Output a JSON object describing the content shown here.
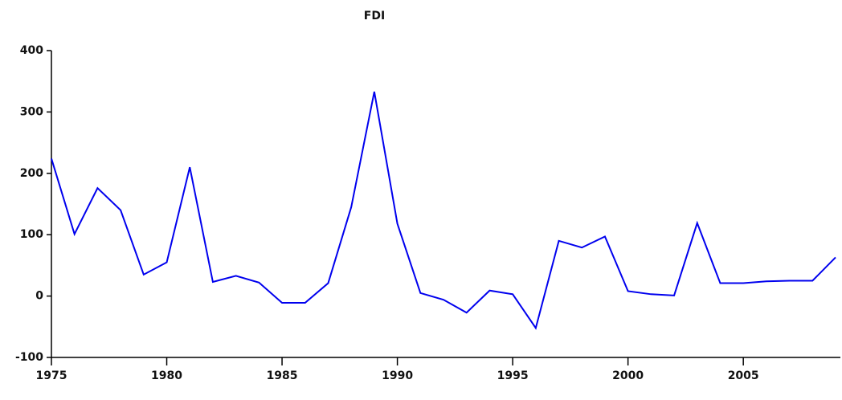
{
  "chart_data": {
    "type": "line",
    "title": "FDI",
    "x": [
      1975,
      1976,
      1977,
      1978,
      1979,
      1980,
      1981,
      1982,
      1983,
      1984,
      1985,
      1986,
      1987,
      1988,
      1989,
      1990,
      1991,
      1992,
      1993,
      1994,
      1995,
      1996,
      1997,
      1998,
      1999,
      2000,
      2001,
      2002,
      2003,
      2004,
      2005,
      2006,
      2007,
      2008,
      2009
    ],
    "series": [
      {
        "name": "FDI",
        "color": "#0000ee",
        "values": [
          224,
          101,
          176,
          140,
          35,
          55,
          210,
          23,
          33,
          22,
          -11,
          -11,
          21,
          145,
          333,
          118,
          5,
          -6,
          -27,
          9,
          3,
          -52,
          90,
          79,
          97,
          8,
          3,
          1,
          119,
          21,
          21,
          24,
          25,
          25,
          63
        ]
      }
    ],
    "xlim": [
      1975,
      2009
    ],
    "xticks": [
      1975,
      1980,
      1985,
      1990,
      1995,
      2000,
      2005
    ],
    "ylim": [
      -100,
      400
    ],
    "yticks": [
      -100,
      0,
      100,
      200,
      300,
      400
    ]
  }
}
